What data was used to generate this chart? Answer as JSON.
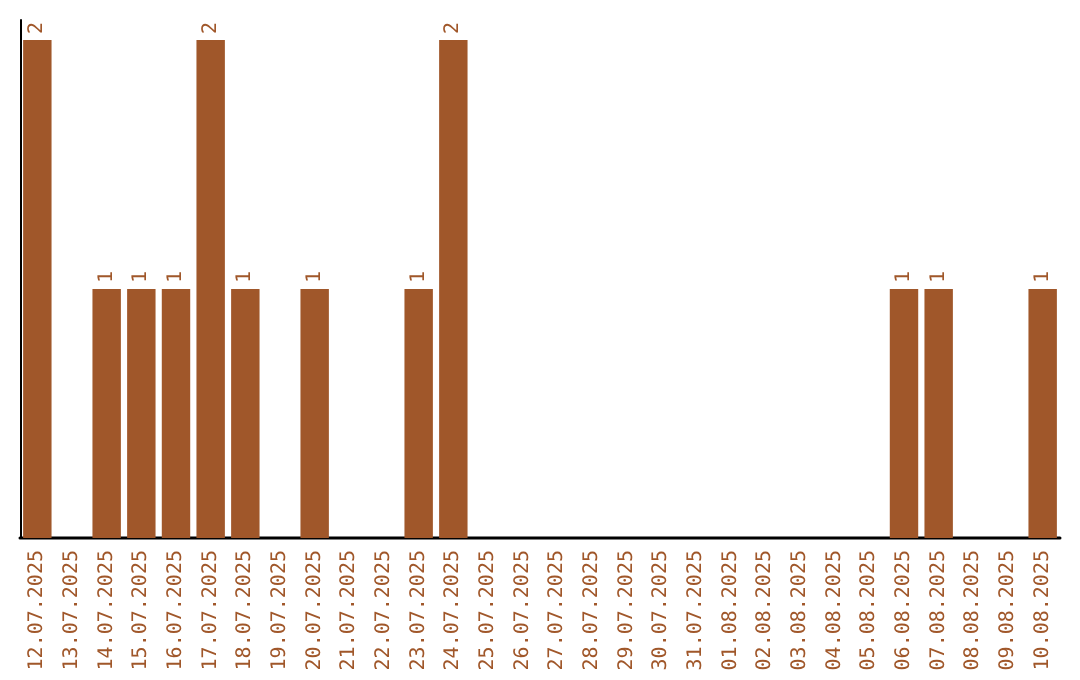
{
  "chart_data": {
    "type": "bar",
    "categories": [
      "12.07.2025",
      "13.07.2025",
      "14.07.2025",
      "15.07.2025",
      "16.07.2025",
      "17.07.2025",
      "18.07.2025",
      "19.07.2025",
      "20.07.2025",
      "21.07.2025",
      "22.07.2025",
      "23.07.2025",
      "24.07.2025",
      "25.07.2025",
      "26.07.2025",
      "27.07.2025",
      "28.07.2025",
      "29.07.2025",
      "30.07.2025",
      "31.07.2025",
      "01.08.2025",
      "02.08.2025",
      "03.08.2025",
      "04.08.2025",
      "05.08.2025",
      "06.08.2025",
      "07.08.2025",
      "08.08.2025",
      "09.08.2025",
      "10.08.2025"
    ],
    "values": [
      2,
      0,
      1,
      1,
      1,
      2,
      1,
      0,
      1,
      0,
      0,
      1,
      2,
      0,
      0,
      0,
      0,
      0,
      0,
      0,
      0,
      0,
      0,
      0,
      0,
      1,
      1,
      0,
      0,
      1
    ],
    "value_labels": [
      "2",
      null,
      "1",
      "1",
      "1",
      "2",
      "1",
      null,
      "1",
      null,
      null,
      "1",
      "2",
      null,
      null,
      null,
      null,
      null,
      null,
      null,
      null,
      null,
      null,
      null,
      null,
      "1",
      "1",
      null,
      null,
      "1"
    ],
    "color": "#a0572a",
    "tick_labels": "x"
  }
}
